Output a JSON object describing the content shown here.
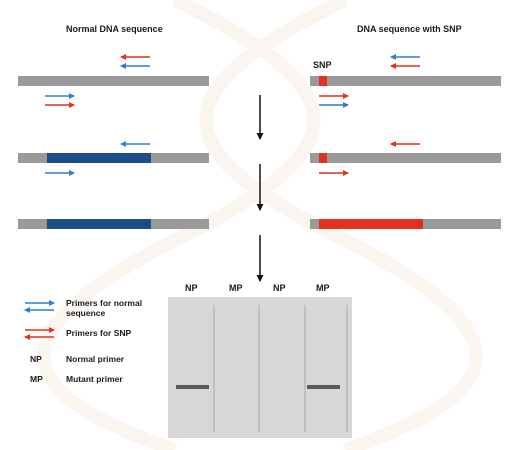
{
  "headings": {
    "normal": "Normal DNA sequence",
    "snp": "DNA sequence with SNP"
  },
  "snp_label": "SNP",
  "gel": {
    "lane_labels": [
      "NP",
      "MP",
      "NP",
      "MP"
    ],
    "bands": [
      true,
      false,
      false,
      true
    ]
  },
  "legend": {
    "normal_primers": "Primers for normal sequence",
    "snp_primers": "Primers for SNP",
    "np_abbr": "NP",
    "np_desc": "Normal primer",
    "mp_abbr": "MP",
    "mp_desc": "Mutant primer"
  },
  "colors": {
    "strand": "#9a9a9a",
    "normal_product": "#1e4c8a",
    "snp_product": "#e0321e",
    "blue_primer": "#2f7fd0",
    "red_primer": "#e0321e",
    "gel": "#d7d7d7",
    "band": "#5a5a5a"
  }
}
